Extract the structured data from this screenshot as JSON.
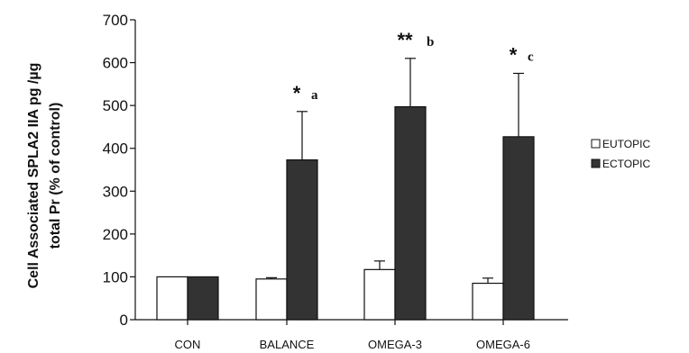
{
  "chart_data": {
    "type": "bar",
    "ylabel_lines": [
      "Cell Associated SPLA2 IIA pg /µg",
      "total Pr (% of control)"
    ],
    "ylim": [
      0,
      700
    ],
    "yticks": [
      "0",
      "100",
      "200",
      "300",
      "400",
      "500",
      "600",
      "700"
    ],
    "categories": [
      "CON",
      "BALANCE",
      "OMEGA-3",
      "OMEGA-6"
    ],
    "series": [
      {
        "name": "EUTOPIC",
        "values": [
          100,
          95,
          117,
          85
        ],
        "errors": [
          0,
          3,
          20,
          12
        ],
        "color": "#ffffff"
      },
      {
        "name": "ECTOPIC",
        "values": [
          100,
          373,
          497,
          427
        ],
        "errors": [
          0,
          113,
          113,
          148
        ],
        "color": "#333333"
      }
    ],
    "annotations": [
      {
        "category": "BALANCE",
        "stars": "*",
        "letter": "a"
      },
      {
        "category": "OMEGA-3",
        "stars": "**",
        "letter": "b"
      },
      {
        "category": "OMEGA-6",
        "stars": "*",
        "letter": "c"
      }
    ],
    "legend_position": "right",
    "grid": false
  }
}
